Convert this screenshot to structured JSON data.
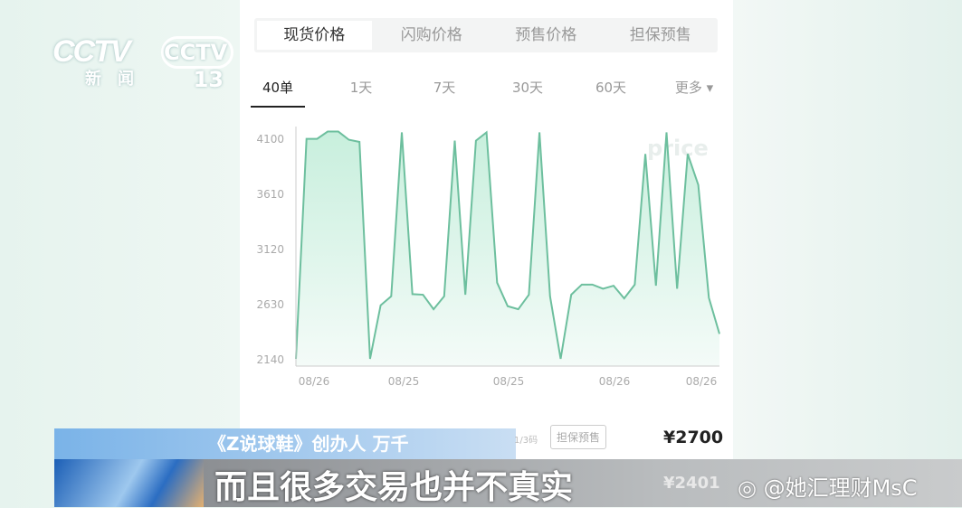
{
  "broadcast": {
    "channel_logo": "CCTV 13",
    "channel_name": "新闻"
  },
  "app": {
    "tabs": [
      "现货价格",
      "闪购价格",
      "预售价格",
      "担保预售"
    ],
    "selected_tab": 0,
    "periods": [
      "40单",
      "1天",
      "7天",
      "30天",
      "60天",
      "更多 ▾"
    ],
    "selected_period": 0,
    "watermark": "price",
    "badge": "担保预售",
    "fraction": "1/3码",
    "price_top": "¥2700",
    "price_bottom": "¥2401"
  },
  "caption": {
    "name": "《Z说球鞋》创办人 万千",
    "subtitle": "而且很多交易也并不真实"
  },
  "weibo": {
    "icon": "weibo-icon",
    "handle": "@她汇理财MsC"
  },
  "colors": {
    "line": "#6dbf9e",
    "fill": "#c8efdd"
  },
  "chart_data": {
    "type": "area",
    "yticks": [
      "4100",
      "3610",
      "3120",
      "2630",
      "2140"
    ],
    "xticks": [
      "08/26",
      "08/25",
      "08/25",
      "08/26",
      "08/26"
    ],
    "ylim": [
      2140,
      4170
    ],
    "grid": false,
    "values": [
      2140,
      4095,
      4095,
      4160,
      4160,
      4087,
      4068,
      2140,
      2616,
      2696,
      4153,
      2715,
      2710,
      2581,
      2696,
      4079,
      2710,
      4079,
      4153,
      2817,
      2608,
      2581,
      2710,
      4153,
      2696,
      2140,
      2710,
      2800,
      2800,
      2763,
      2790,
      2677,
      2800,
      3961,
      2790,
      4153,
      2763,
      3961,
      3686,
      2683,
      2362
    ]
  }
}
